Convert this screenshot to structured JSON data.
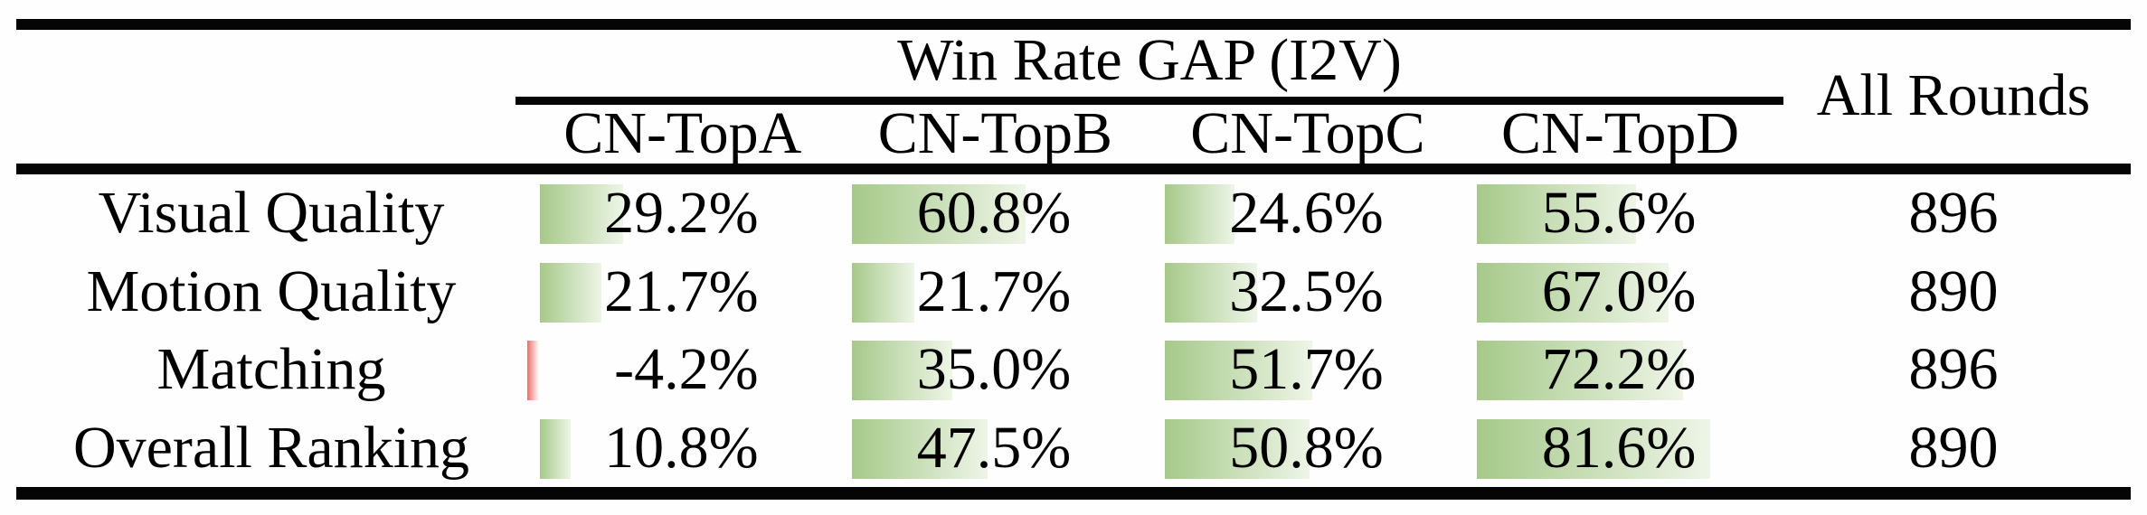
{
  "table": {
    "span_header": "Win Rate GAP (I2V)",
    "all_rounds_header": "All Rounds",
    "columns": [
      "CN-TopA",
      "CN-TopB",
      "CN-TopC",
      "CN-TopD"
    ],
    "rows": [
      {
        "label": "Visual Quality",
        "cells": [
          {
            "text": "29.2%",
            "value": 29.2
          },
          {
            "text": "60.8%",
            "value": 60.8
          },
          {
            "text": "24.6%",
            "value": 24.6
          },
          {
            "text": "55.6%",
            "value": 55.6
          }
        ],
        "all_rounds": "896"
      },
      {
        "label": "Motion Quality",
        "cells": [
          {
            "text": "21.7%",
            "value": 21.7
          },
          {
            "text": "21.7%",
            "value": 21.7
          },
          {
            "text": "32.5%",
            "value": 32.5
          },
          {
            "text": "67.0%",
            "value": 67.0
          }
        ],
        "all_rounds": "890"
      },
      {
        "label": "Matching",
        "cells": [
          {
            "text": "-4.2%",
            "value": -4.2
          },
          {
            "text": "35.0%",
            "value": 35.0
          },
          {
            "text": "51.7%",
            "value": 51.7
          },
          {
            "text": "72.2%",
            "value": 72.2
          }
        ],
        "all_rounds": "896"
      },
      {
        "label": "Overall Ranking",
        "cells": [
          {
            "text": "10.8%",
            "value": 10.8
          },
          {
            "text": "47.5%",
            "value": 47.5
          },
          {
            "text": "50.8%",
            "value": 50.8
          },
          {
            "text": "81.6%",
            "value": 81.6
          }
        ],
        "all_rounds": "890"
      }
    ],
    "colors": {
      "bar_positive_start": "#a6c98a",
      "bar_positive_end": "#eef5e7",
      "bar_negative_start": "#ee6a6a",
      "bar_negative_end": "#ffffff",
      "rule_color": "#050505"
    }
  },
  "chart_data": {
    "type": "table",
    "title": "Win Rate GAP (I2V)",
    "columns": [
      "CN-TopA",
      "CN-TopB",
      "CN-TopC",
      "CN-TopD",
      "All Rounds"
    ],
    "series": [
      {
        "name": "Visual Quality",
        "values": [
          29.2,
          60.8,
          24.6,
          55.6
        ],
        "all_rounds": 896
      },
      {
        "name": "Motion Quality",
        "values": [
          21.7,
          21.7,
          32.5,
          67.0
        ],
        "all_rounds": 890
      },
      {
        "name": "Matching",
        "values": [
          -4.2,
          35.0,
          51.7,
          72.2
        ],
        "all_rounds": 896
      },
      {
        "name": "Overall Ranking",
        "values": [
          10.8,
          47.5,
          50.8,
          81.6
        ],
        "all_rounds": 890
      }
    ],
    "value_unit": "%",
    "bar_style": "left-anchored gradient data bars, green for positive, red for negative",
    "layout": "booktabs table: thick top/mid/bottom rules, cmidrule under spanning header"
  }
}
